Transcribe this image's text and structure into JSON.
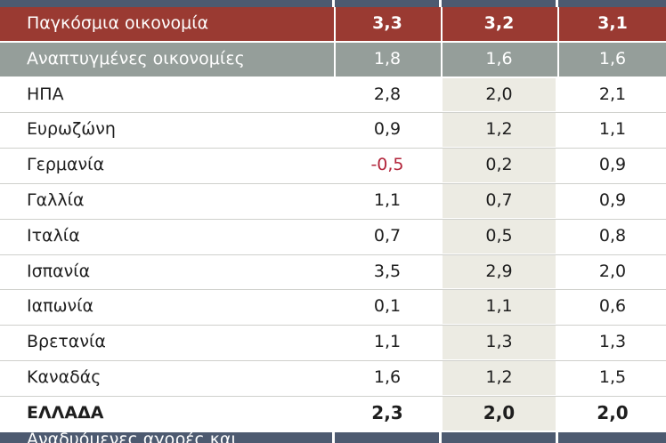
{
  "chart_data": {
    "type": "table",
    "rows": [
      {
        "label": "Παγκόσμια οικονομία",
        "values": [
          "3,3",
          "3,2",
          "3,1"
        ],
        "style": "world"
      },
      {
        "label": "Αναπτυγμένες οικονομίες",
        "values": [
          "1,8",
          "1,6",
          "1,6"
        ],
        "style": "developed"
      },
      {
        "label": "ΗΠΑ",
        "values": [
          "2,8",
          "2,0",
          "2,1"
        ],
        "style": "regular"
      },
      {
        "label": "Ευρωζώνη",
        "values": [
          "0,9",
          "1,2",
          "1,1"
        ],
        "style": "regular"
      },
      {
        "label": "Γερμανία",
        "values": [
          "-0,5",
          "0,2",
          "0,9"
        ],
        "style": "regular"
      },
      {
        "label": "Γαλλία",
        "values": [
          "1,1",
          "0,7",
          "0,9"
        ],
        "style": "regular"
      },
      {
        "label": "Ιταλία",
        "values": [
          "0,7",
          "0,5",
          "0,8"
        ],
        "style": "regular"
      },
      {
        "label": "Ισπανία",
        "values": [
          "3,5",
          "2,9",
          "2,0"
        ],
        "style": "regular"
      },
      {
        "label": "Ιαπωνία",
        "values": [
          "0,1",
          "1,1",
          "0,6"
        ],
        "style": "regular"
      },
      {
        "label": "Βρετανία",
        "values": [
          "1,1",
          "1,3",
          "1,3"
        ],
        "style": "regular"
      },
      {
        "label": "Καναδάς",
        "values": [
          "1,6",
          "1,2",
          "1,5"
        ],
        "style": "regular"
      },
      {
        "label": "ΕΛΛΑΔΑ",
        "values": [
          "2,3",
          "2,0",
          "2,0"
        ],
        "style": "greece"
      }
    ],
    "cut_off_row_label": "Αναδυόμενες αγορές και"
  },
  "colors": {
    "world_row": "#9a3a32",
    "developed_row": "#959e9a",
    "frame": "#4d5a70",
    "middle_column": "#ecebe3",
    "negative_value": "#b2243a"
  }
}
